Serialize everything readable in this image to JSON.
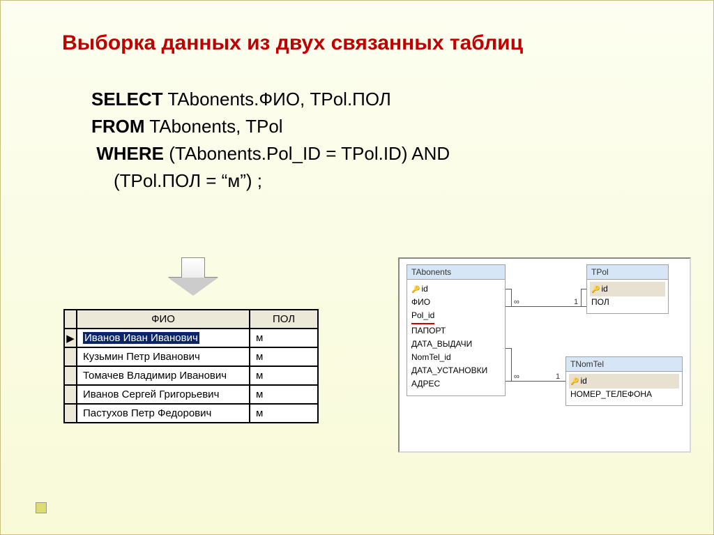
{
  "title": "Выборка данных из двух связанных таблиц",
  "sql": {
    "select_kw": "SELECT",
    "select_rest": " TAbonents.ФИО, TPol.ПОЛ",
    "from_kw": "FROM",
    "from_rest": " TAbonents, TPol",
    "where_kw": "WHERE",
    "where_rest": " (TAbonents.Pol_ID = TPol.ID) AND",
    "where_line2": "(TPol.ПОЛ = “м”) ;"
  },
  "result": {
    "columns": [
      "ФИО",
      "ПОЛ"
    ],
    "rows": [
      {
        "fio": "Иванов Иван Иванович",
        "pol": "м",
        "selected": true,
        "indicator": "▶"
      },
      {
        "fio": "Кузьмин Петр Иванович",
        "pol": "м",
        "selected": false,
        "indicator": ""
      },
      {
        "fio": "Томачев Владимир Иванович",
        "pol": "м",
        "selected": false,
        "indicator": ""
      },
      {
        "fio": "Иванов Сергей Григорьевич",
        "pol": "м",
        "selected": false,
        "indicator": ""
      },
      {
        "fio": "Пастухов Петр Федорович",
        "pol": "м",
        "selected": false,
        "indicator": ""
      }
    ]
  },
  "diagram": {
    "tabonents": {
      "title": "TAbonents",
      "fields": [
        "id",
        "ФИО",
        "Pol_id",
        "ПАПОРТ",
        "ДАТА_ВЫДАЧИ",
        "NomTel_id",
        "ДАТА_УСТАНОВКИ",
        "АДРЕС"
      ]
    },
    "tpol": {
      "title": "TPol",
      "fields": [
        "id",
        "ПОЛ"
      ]
    },
    "tnomtel": {
      "title": "TNomTel",
      "fields": [
        "id",
        "НОМЕР_ТЕЛЕФОНА"
      ]
    },
    "card_inf1": "∞",
    "card_one1": "1",
    "card_inf2": "∞",
    "card_one2": "1"
  }
}
